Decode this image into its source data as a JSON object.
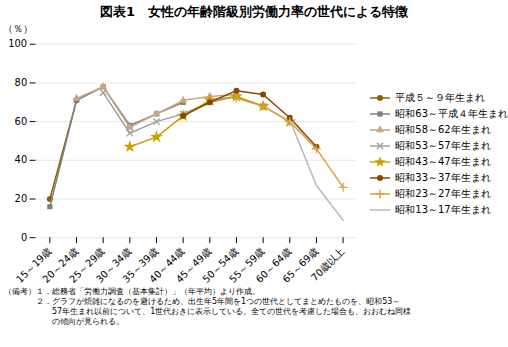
{
  "chart_data": {
    "type": "line",
    "title": "図表1　女性の年齢階級別労働力率の世代による特徴",
    "y_label": "（％）",
    "categories": [
      "15～19歳",
      "20～24歳",
      "25～29歳",
      "30～34歳",
      "35～39歳",
      "40～44歳",
      "45～49歳",
      "50～54歳",
      "55～59歳",
      "60～64歳",
      "65～69歳",
      "70歳以上"
    ],
    "series": [
      {
        "name": "平成５～９年生まれ",
        "color": "#8B5E00",
        "marker": "circle",
        "values": [
          20,
          71,
          null,
          null,
          null,
          null,
          null,
          null,
          null,
          null,
          null,
          null
        ]
      },
      {
        "name": "昭和63～平成４年生まれ",
        "color": "#808080",
        "marker": "square",
        "values": [
          16,
          71,
          78,
          58,
          64,
          70,
          null,
          null,
          null,
          null,
          null,
          null
        ]
      },
      {
        "name": "昭和58～62年生まれ",
        "color": "#C8A882",
        "marker": "triangle",
        "values": [
          null,
          72,
          78,
          57,
          64,
          71,
          73,
          74,
          null,
          null,
          null,
          null
        ]
      },
      {
        "name": "昭和53～57年生まれ",
        "color": "#A0A0A0",
        "marker": "times",
        "values": [
          null,
          null,
          75,
          54,
          60,
          64,
          70,
          73,
          68,
          null,
          null,
          null
        ]
      },
      {
        "name": "昭和43～47年生まれ",
        "color": "#C8A000",
        "marker": "star",
        "values": [
          null,
          null,
          null,
          47,
          52,
          63,
          71,
          73,
          68,
          60,
          null,
          null
        ]
      },
      {
        "name": "昭和33～37年生まれ",
        "color": "#8B4500",
        "marker": "circle",
        "values": [
          null,
          null,
          null,
          null,
          null,
          63,
          70,
          76,
          74,
          62,
          47,
          null
        ]
      },
      {
        "name": "昭和23～27年生まれ",
        "color": "#D4A040",
        "marker": "plus",
        "values": [
          null,
          null,
          null,
          null,
          null,
          null,
          null,
          72,
          68,
          60,
          46,
          26
        ]
      },
      {
        "name": "昭和13～17年生まれ",
        "color": "#B8B8B8",
        "marker": "none",
        "values": [
          null,
          null,
          null,
          null,
          null,
          null,
          null,
          null,
          null,
          61,
          27,
          9
        ]
      }
    ],
    "ylim": [
      0,
      100
    ],
    "yticks": [
      0,
      20,
      40,
      60,
      80,
      100
    ],
    "grid": true,
    "legend": "right",
    "footnotes": [
      "（備考）１．総務省「労働力調査（基本集計）」（年平均）より作成。",
      "　　　　２．グラフが煩雑になるのを避けるため、出生年5年間を1つの世代としてまとめたものを、昭和53～",
      "　　　　　　57年生まれ以前について、1世代おきに表示している。全ての世代を考慮した場合も、おおむね同様",
      "　　　　　　の傾向が見られる。"
    ]
  }
}
